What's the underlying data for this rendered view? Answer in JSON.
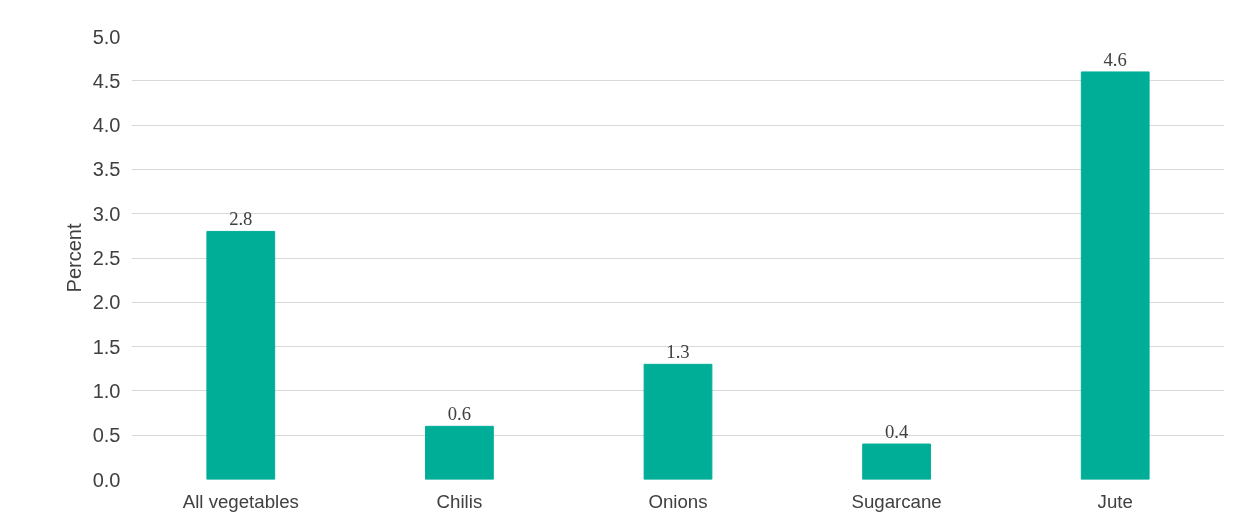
{
  "chart_data": {
    "type": "bar",
    "ylabel": "Percent",
    "categories": [
      "All vegetables",
      "Chilis",
      "Onions",
      "Sugarcane",
      "Jute"
    ],
    "values": [
      2.8,
      0.6,
      1.3,
      0.4,
      4.6
    ],
    "color": "#00ae98",
    "ylim": [
      0,
      5
    ],
    "yticks": [
      {
        "value": 0,
        "label": "0.0"
      },
      {
        "value": 0.5,
        "label": "0.5"
      },
      {
        "value": 1,
        "label": "1.0"
      },
      {
        "value": 1.5,
        "label": "1.5"
      },
      {
        "value": 2,
        "label": "2.0"
      },
      {
        "value": 2.5,
        "label": "2.5"
      },
      {
        "value": 3,
        "label": "3.0"
      },
      {
        "value": 3.5,
        "label": "3.5"
      },
      {
        "value": 4,
        "label": "4.0"
      },
      {
        "value": 4.5,
        "label": "4.5"
      },
      {
        "value": 5,
        "label": "5.0"
      }
    ],
    "grid": "y",
    "data_labels": true
  }
}
